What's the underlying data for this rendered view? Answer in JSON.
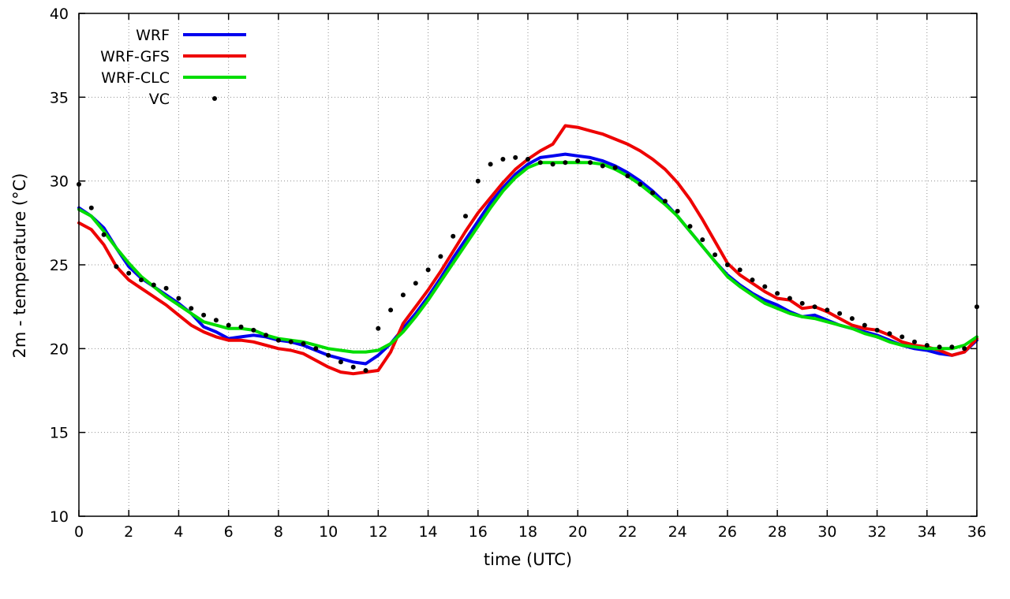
{
  "chart_data": {
    "type": "line",
    "xlabel": "time (UTC)",
    "ylabel": "2m - temperature (°C)",
    "xlim": [
      0,
      36
    ],
    "ylim": [
      10,
      40
    ],
    "xticks": [
      0,
      2,
      4,
      6,
      8,
      10,
      12,
      14,
      16,
      18,
      20,
      22,
      24,
      26,
      28,
      30,
      32,
      34,
      36
    ],
    "yticks": [
      10,
      15,
      20,
      25,
      30,
      35,
      40
    ],
    "grid": true,
    "legend_position": "top-left",
    "x": [
      0,
      0.5,
      1,
      1.5,
      2,
      2.5,
      3,
      3.5,
      4,
      4.5,
      5,
      5.5,
      6,
      6.5,
      7,
      7.5,
      8,
      8.5,
      9,
      9.5,
      10,
      10.5,
      11,
      11.5,
      12,
      12.5,
      13,
      13.5,
      14,
      14.5,
      15,
      15.5,
      16,
      16.5,
      17,
      17.5,
      18,
      18.5,
      19,
      19.5,
      20,
      20.5,
      21,
      21.5,
      22,
      22.5,
      23,
      23.5,
      24,
      24.5,
      25,
      25.5,
      26,
      26.5,
      27,
      27.5,
      28,
      28.5,
      29,
      29.5,
      30,
      30.5,
      31,
      31.5,
      32,
      32.5,
      33,
      33.5,
      34,
      34.5,
      35,
      35.5,
      36
    ],
    "series": [
      {
        "name": "WRF",
        "type": "line",
        "color": "#0000ee",
        "y": [
          28.4,
          27.9,
          27.2,
          26.0,
          24.9,
          24.2,
          23.7,
          23.2,
          22.7,
          22.1,
          21.3,
          21.0,
          20.6,
          20.7,
          20.8,
          20.7,
          20.5,
          20.4,
          20.2,
          19.9,
          19.6,
          19.4,
          19.2,
          19.1,
          19.6,
          20.3,
          21.2,
          22.1,
          23.1,
          24.2,
          25.4,
          26.5,
          27.6,
          28.7,
          29.6,
          30.4,
          31.0,
          31.4,
          31.5,
          31.6,
          31.5,
          31.4,
          31.2,
          30.9,
          30.5,
          30.0,
          29.4,
          28.7,
          27.9,
          27.0,
          26.1,
          25.2,
          24.4,
          23.8,
          23.3,
          22.9,
          22.6,
          22.2,
          21.9,
          22.0,
          21.7,
          21.4,
          21.2,
          21.0,
          20.8,
          20.5,
          20.2,
          20.0,
          19.9,
          19.7,
          19.6,
          19.8,
          20.5
        ]
      },
      {
        "name": "WRF-GFS",
        "type": "line",
        "color": "#ee0000",
        "y": [
          27.5,
          27.1,
          26.2,
          24.9,
          24.1,
          23.6,
          23.1,
          22.6,
          22.0,
          21.4,
          21.0,
          20.7,
          20.5,
          20.5,
          20.4,
          20.2,
          20.0,
          19.9,
          19.7,
          19.3,
          18.9,
          18.6,
          18.5,
          18.6,
          18.7,
          19.8,
          21.5,
          22.5,
          23.5,
          24.6,
          25.8,
          27.0,
          28.1,
          29.0,
          29.9,
          30.7,
          31.3,
          31.8,
          32.2,
          33.3,
          33.2,
          33.0,
          32.8,
          32.5,
          32.2,
          31.8,
          31.3,
          30.7,
          29.9,
          28.9,
          27.7,
          26.4,
          25.1,
          24.4,
          23.9,
          23.4,
          23.0,
          22.9,
          22.4,
          22.5,
          22.2,
          21.8,
          21.4,
          21.2,
          21.1,
          20.8,
          20.4,
          20.2,
          20.1,
          19.9,
          19.6,
          19.8,
          20.6
        ]
      },
      {
        "name": "WRF-CLC",
        "type": "line",
        "color": "#00dd00",
        "y": [
          28.3,
          27.9,
          27.0,
          26.0,
          25.1,
          24.3,
          23.7,
          23.1,
          22.6,
          22.1,
          21.6,
          21.4,
          21.2,
          21.2,
          21.1,
          20.8,
          20.6,
          20.5,
          20.4,
          20.2,
          20.0,
          19.9,
          19.8,
          19.8,
          19.9,
          20.3,
          21.0,
          21.9,
          22.9,
          24.0,
          25.1,
          26.2,
          27.3,
          28.4,
          29.4,
          30.2,
          30.8,
          31.1,
          31.1,
          31.1,
          31.1,
          31.1,
          31.0,
          30.7,
          30.3,
          29.8,
          29.2,
          28.6,
          27.9,
          27.0,
          26.1,
          25.2,
          24.3,
          23.7,
          23.2,
          22.7,
          22.4,
          22.1,
          21.9,
          21.8,
          21.6,
          21.4,
          21.2,
          20.9,
          20.7,
          20.4,
          20.2,
          20.1,
          20.0,
          20.0,
          20.0,
          20.2,
          20.7
        ]
      },
      {
        "name": "VC",
        "type": "scatter",
        "color": "#000000",
        "y": [
          29.8,
          28.4,
          26.8,
          24.9,
          24.5,
          24.1,
          23.8,
          23.6,
          23.0,
          22.4,
          22.0,
          21.7,
          21.4,
          21.3,
          21.1,
          20.8,
          20.5,
          20.4,
          20.3,
          20.0,
          19.6,
          19.2,
          18.9,
          18.7,
          21.2,
          22.3,
          23.2,
          23.9,
          24.7,
          25.5,
          26.7,
          27.9,
          30.0,
          31.0,
          31.3,
          31.4,
          31.3,
          31.1,
          31.0,
          31.1,
          31.2,
          31.1,
          30.9,
          30.8,
          30.3,
          29.8,
          29.3,
          28.8,
          28.2,
          27.3,
          26.5,
          25.6,
          25.0,
          24.7,
          24.1,
          23.7,
          23.3,
          23.0,
          22.7,
          22.5,
          22.3,
          22.1,
          21.8,
          21.4,
          21.1,
          20.9,
          20.7,
          20.4,
          20.2,
          20.1,
          20.1,
          20.0,
          22.5
        ]
      }
    ]
  }
}
